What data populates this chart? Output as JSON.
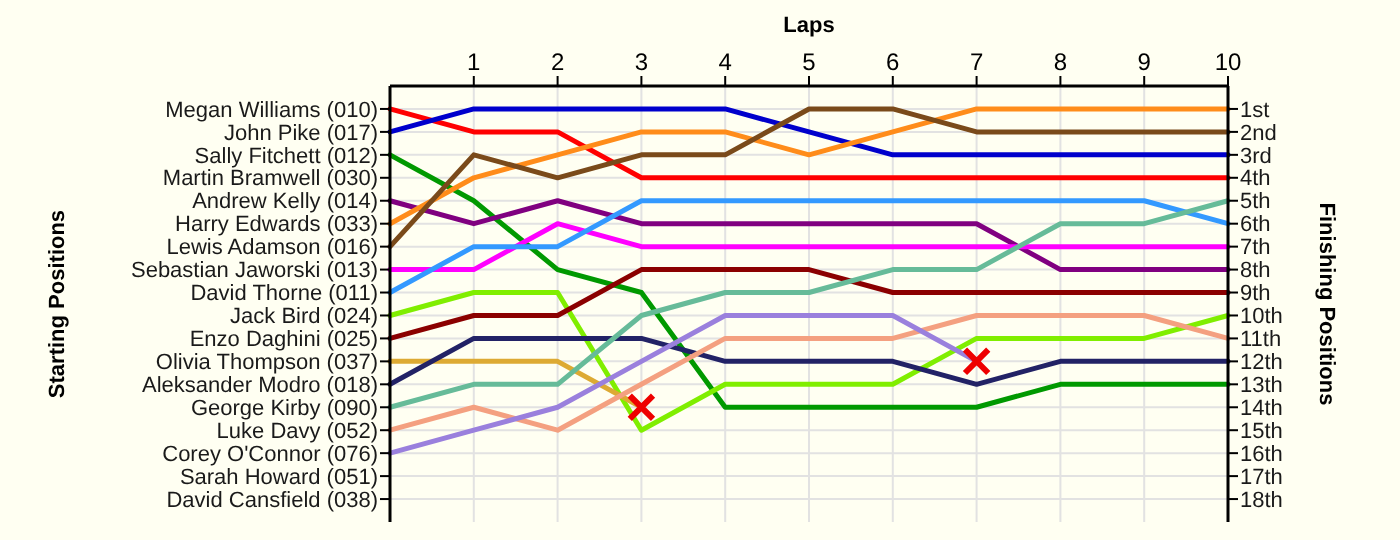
{
  "chart_data": {
    "type": "line",
    "xlabel": "Laps",
    "ylabel": "Finishing Positions",
    "x": [
      0,
      1,
      2,
      3,
      4,
      5,
      6,
      7,
      8,
      9,
      10
    ],
    "xlim": [
      0,
      10
    ],
    "xticks": [
      1,
      2,
      3,
      4,
      5,
      6,
      7,
      8,
      9,
      10
    ],
    "ylim": [
      19,
      0
    ],
    "yticks": [
      {
        "value": 1,
        "label": "1st"
      },
      {
        "value": 2,
        "label": "2nd"
      },
      {
        "value": 3,
        "label": "3rd"
      },
      {
        "value": 4,
        "label": "4th"
      },
      {
        "value": 5,
        "label": "5th"
      },
      {
        "value": 6,
        "label": "6th"
      },
      {
        "value": 7,
        "label": "7th"
      },
      {
        "value": 8,
        "label": "8th"
      },
      {
        "value": 9,
        "label": "9th"
      },
      {
        "value": 10,
        "label": "10th"
      },
      {
        "value": 11,
        "label": "11th"
      },
      {
        "value": 12,
        "label": "12th"
      },
      {
        "value": 13,
        "label": "13th"
      },
      {
        "value": 14,
        "label": "14th"
      },
      {
        "value": 15,
        "label": "15th"
      },
      {
        "value": 16,
        "label": "16th"
      },
      {
        "value": 17,
        "label": "17th"
      },
      {
        "value": 18,
        "label": "18th"
      }
    ],
    "annotations": [
      "Starting Positions",
      "Martin Bramwell (030)",
      "Sarah Howard (051)",
      "David Cansfield (038)"
    ],
    "grid": true,
    "line_style": "solid",
    "series": [
      {
        "name": "Megan Williams (010)",
        "color": "#ff0000",
        "values": [
          1,
          2,
          2,
          4,
          4,
          4,
          4,
          4,
          4,
          4,
          4
        ]
      },
      {
        "name": "John Pike (017)",
        "color": "#0000cc",
        "values": [
          2,
          1,
          1,
          1,
          1,
          2,
          3,
          3,
          3,
          3,
          3
        ]
      },
      {
        "name": "Sally Fitchett (012)",
        "color": "#009900",
        "values": [
          3,
          5,
          8,
          9,
          14,
          14,
          14,
          14,
          13,
          13,
          13
        ]
      },
      {
        "name": "Andrew Kelly (014)",
        "color": "#800080",
        "values": [
          5,
          6,
          5,
          6,
          6,
          6,
          6,
          6,
          8,
          8,
          8
        ]
      },
      {
        "name": "Harry Edwards (033)",
        "color": "#ff8c1a",
        "values": [
          6,
          4,
          3,
          2,
          2,
          3,
          2,
          1,
          1,
          1,
          1
        ]
      },
      {
        "name": "Lewis Adamson (016)",
        "color": "#7a4a1a",
        "values": [
          7,
          3,
          4,
          3,
          3,
          1,
          1,
          2,
          2,
          2,
          2
        ]
      },
      {
        "name": "Sebastian Jaworski (013)",
        "color": "#ff00ff",
        "values": [
          8,
          8,
          6,
          7,
          7,
          7,
          7,
          7,
          7,
          7,
          7
        ]
      },
      {
        "name": "David Thorne (011)",
        "color": "#3399ff",
        "values": [
          9,
          7,
          7,
          5,
          5,
          5,
          5,
          5,
          5,
          5,
          6
        ]
      },
      {
        "name": "Jack Bird (024)",
        "color": "#80ee00",
        "values": [
          10,
          9,
          9,
          15,
          13,
          13,
          13,
          11,
          11,
          11,
          10
        ]
      },
      {
        "name": "Enzo Daghini (025)",
        "color": "#8b0000",
        "values": [
          11,
          10,
          10,
          8,
          8,
          8,
          9,
          9,
          9,
          9,
          9
        ]
      },
      {
        "name": "Olivia Thompson (037)",
        "color": "#ddaa33",
        "values": [
          12,
          12,
          12,
          14,
          null,
          null,
          null,
          null,
          null,
          null,
          null
        ]
      },
      {
        "name": "Aleksander Modro (018)",
        "color": "#222266",
        "values": [
          13,
          11,
          11,
          11,
          12,
          12,
          12,
          13,
          12,
          12,
          12
        ]
      },
      {
        "name": "George Kirby (090)",
        "color": "#66bb99",
        "values": [
          14,
          13,
          13,
          10,
          9,
          9,
          8,
          8,
          6,
          6,
          5
        ]
      },
      {
        "name": "Luke Davy (052)",
        "color": "#f4a080",
        "values": [
          15,
          14,
          15,
          13,
          11,
          11,
          11,
          10,
          10,
          10,
          11
        ]
      },
      {
        "name": "Corey O'Connor (076)",
        "color": "#9a80dd",
        "values": [
          16,
          15,
          14,
          12,
          10,
          10,
          10,
          12,
          null,
          null,
          null
        ]
      },
      {
        "type": "scatter",
        "marker": "cross",
        "color": "#ee0000",
        "x": [
          3,
          7
        ],
        "values": [
          14,
          12
        ]
      }
    ]
  }
}
